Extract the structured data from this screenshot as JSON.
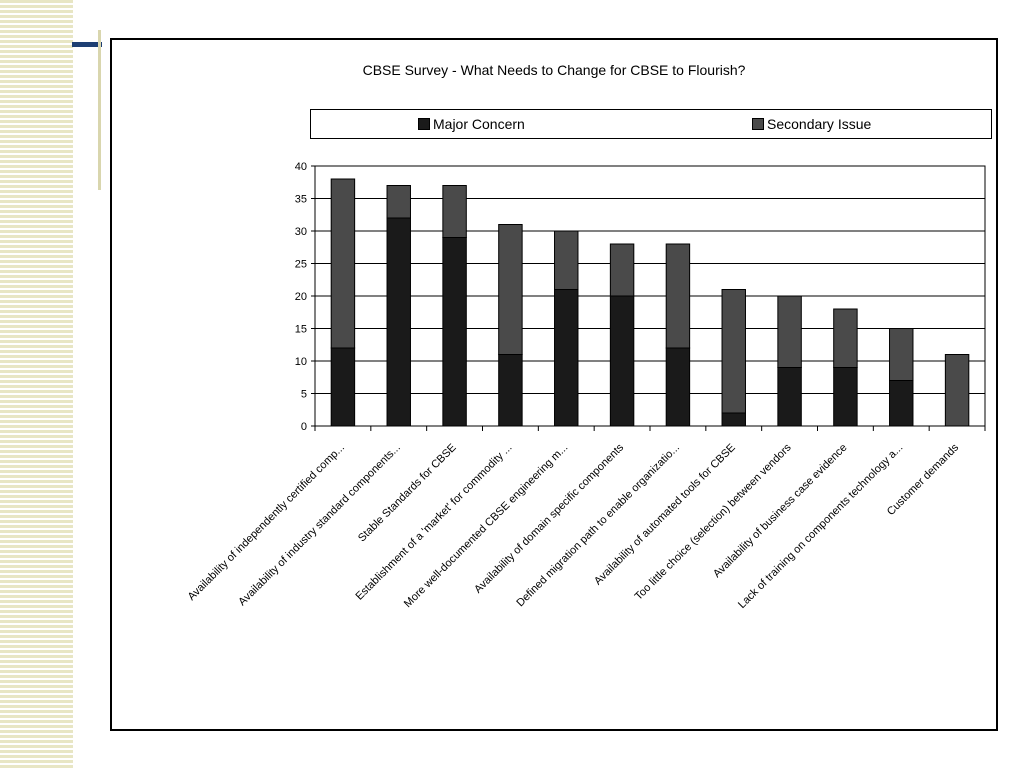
{
  "chart_data": {
    "type": "bar",
    "stacked": true,
    "title": "CBSE Survey - What Needs to Change for CBSE to Flourish?",
    "categories": [
      "Availability of independently certified comp...",
      "Availability of industry standard components...",
      "Stable Standards for CBSE",
      "Establishment of a 'market' for commodity ...",
      "More well-documented CBSE engineering m...",
      "Availability of domain specific components",
      "Defined migration path to enable organizatio...",
      "Availability of automated tools for CBSE",
      "Too little choice (selection) between vendors",
      "Availability of business case evidence",
      "Lack of training on components technology a...",
      "Customer demands"
    ],
    "series": [
      {
        "name": "Major Concern",
        "color": "#1a1a1a",
        "values": [
          12,
          32,
          29,
          11,
          21,
          20,
          12,
          2,
          9,
          9,
          7,
          0
        ]
      },
      {
        "name": "Secondary Issue",
        "color": "#4a4a4a",
        "values": [
          26,
          5,
          8,
          20,
          9,
          8,
          16,
          19,
          11,
          9,
          8,
          11
        ]
      }
    ],
    "ylim": [
      0,
      40
    ],
    "yticks": [
      "0",
      "5",
      "10",
      "15",
      "20",
      "25",
      "30",
      "35",
      "40"
    ],
    "grid": true,
    "legend_position": "top"
  }
}
